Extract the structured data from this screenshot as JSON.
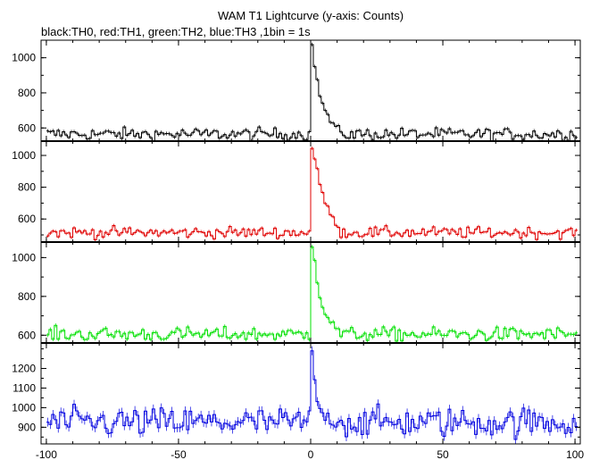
{
  "chart_data": {
    "type": "line",
    "title": "WAM T1 Lightcurve (y-axis: Counts)",
    "subtitle": "black:TH0, red:TH1, green:TH2, blue:TH3 ,1bin = 1s",
    "xlim": [
      -102,
      102
    ],
    "x_ticks": [
      -100,
      -50,
      0,
      50,
      100
    ],
    "bin_width": 1,
    "x_start": -100,
    "x_end": 100,
    "panels": [
      {
        "name": "TH0",
        "color": "#000000",
        "ylim": [
          525,
          1100
        ],
        "y_ticks": [
          600,
          800,
          1000
        ],
        "baseline": 565,
        "noise": 18,
        "peak": 1075,
        "decay": [
          960,
          860,
          790,
          740,
          700,
          670,
          640,
          620,
          605,
          595
        ]
      },
      {
        "name": "TH1",
        "color": "#e00000",
        "ylim": [
          455,
          1090
        ],
        "y_ticks": [
          600,
          800,
          1000
        ],
        "baseline": 515,
        "noise": 18,
        "peak": 1045,
        "decay": [
          980,
          900,
          820,
          760,
          710,
          670,
          630,
          600,
          575,
          555
        ]
      },
      {
        "name": "TH2",
        "color": "#00e000",
        "ylim": [
          560,
          1080
        ],
        "y_ticks": [
          600,
          800,
          1000
        ],
        "baseline": 605,
        "noise": 18,
        "peak": 1055,
        "decay": [
          1000,
          880,
          800,
          750,
          715,
          690,
          670,
          655,
          640,
          630
        ]
      },
      {
        "name": "TH3",
        "color": "#0000e0",
        "ylim": [
          815,
          1330
        ],
        "y_ticks": [
          900,
          1000,
          1100,
          1200
        ],
        "baseline": 925,
        "noise": 38,
        "peak": 1290,
        "decay": [
          1130,
          1040,
          990,
          970,
          955,
          945,
          940,
          935,
          930,
          928
        ]
      }
    ]
  }
}
